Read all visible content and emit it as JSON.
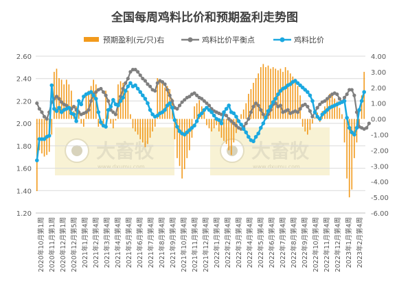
{
  "chart_data": {
    "type": "bar+line",
    "title": "全国每周鸡料比价和预期盈利走势图",
    "legend": {
      "placement": "top",
      "entries": [
        {
          "label": "预期盈利(元/只)右",
          "kind": "bar",
          "color": "#F29A1C"
        },
        {
          "label": "鸡料比价平衡点",
          "kind": "line-marker",
          "color": "#7F7F7F"
        },
        {
          "label": "鸡料比价",
          "kind": "line-marker",
          "color": "#1AA8E0"
        }
      ]
    },
    "left_axis": {
      "min": 1.2,
      "max": 2.6,
      "ticks": [
        "2.60",
        "2.40",
        "2.20",
        "2.00",
        "1.80",
        "1.60",
        "1.40",
        "1.20"
      ]
    },
    "right_axis": {
      "min": -6.0,
      "max": 4.0,
      "ticks": [
        "4.00",
        "3.00",
        "2.00",
        "1.00",
        "0.00",
        "-1.00",
        "-2.00",
        "-3.00",
        "-4.00",
        "-5.00",
        "-6.00"
      ]
    },
    "x_tick_labels": [
      "2020年10月第1周",
      "2020年11月第1周",
      "2020年12月第1周",
      "2020年12月第5周",
      "2021年1月第4周",
      "2021年2月第4周",
      "2021年3月第4周",
      "2021年4月第4周",
      "2021年5月第4周",
      "2021年6月第4周",
      "2021年7月第4周",
      "2021年8月第4周",
      "2021年9月第4周",
      "2021年10月第4周",
      "2021年11月第4周",
      "2021年12月第4周",
      "2022年1月第4周",
      "2022年2月第4周",
      "2022年3月第4周",
      "2022年4月第4周",
      "2022年5月第4周",
      "2022年6月第4周",
      "2022年7月第4周",
      "2022年8月第4周",
      "2022年9月第4周",
      "2022年10月第4周",
      "2022年11月第4周",
      "2022年12月第4周",
      "2023年1月第4周",
      "2023年2月第4周"
    ],
    "series": [
      {
        "name": "预期盈利(元/只)右",
        "type": "bar",
        "axis": "right",
        "color": "#F29A1C",
        "values": [
          -4.6,
          -2.0,
          -2.2,
          -2.4,
          -2.3,
          -2.1,
          -1.0,
          3.0,
          3.2,
          2.6,
          2.5,
          2.2,
          2.5,
          2.2,
          1.8,
          0.5,
          0.8,
          0.6,
          -0.3,
          -0.5,
          1.6,
          1.8,
          2.1,
          2.5,
          2.2,
          -0.5,
          -0.4,
          -0.3,
          1.8,
          0.4,
          -0.3,
          -0.6,
          -0.1,
          2.2,
          2.4,
          2.3,
          1.9,
          1.8,
          0.3,
          -0.6,
          -0.8,
          -1.0,
          -1.3,
          -1.5,
          -1.8,
          -1.6,
          -1.2,
          -0.8,
          -0.5,
          2.6,
          2.5,
          2.3,
          2.0,
          2.1,
          1.9,
          1.3,
          -1.3,
          -2.5,
          -3.0,
          -3.8,
          -3.2,
          -2.5,
          -2.0,
          -1.2,
          0.8,
          1.0,
          1.2,
          0.8,
          0.5,
          -0.4,
          -0.6,
          -0.8,
          -0.6,
          -0.4,
          -0.8,
          -1.2,
          -1.4,
          -1.6,
          -2.0,
          -2.3,
          -1.5,
          -0.9,
          -0.2,
          0.3,
          0.6,
          1.0,
          1.6,
          1.9,
          2.3,
          2.6,
          2.9,
          3.3,
          3.5,
          3.3,
          3.4,
          3.2,
          3.3,
          3.2,
          3.1,
          3.2,
          3.0,
          3.3,
          3.1,
          2.9,
          2.7,
          2.4,
          2.1,
          1.5,
          -0.5,
          -0.8,
          -1.0,
          -0.7,
          -0.3,
          0.1,
          0.4,
          -0.2,
          0.5,
          0.8,
          1.2,
          1.6,
          1.5,
          1.3,
          1.1,
          0.7,
          0.3,
          -1.5,
          -3.8,
          -5.0,
          -4.5,
          -2.5,
          -1.5,
          -0.5,
          1.5,
          3.0
        ]
      },
      {
        "name": "鸡料比价平衡点",
        "type": "line",
        "axis": "left",
        "color": "#7F7F7F",
        "values": [
          2.18,
          2.13,
          2.1,
          2.06,
          2.04,
          2.1,
          2.19,
          2.22,
          2.24,
          2.22,
          2.19,
          2.17,
          2.16,
          2.14,
          2.13,
          2.15,
          2.12,
          2.1,
          2.08,
          2.09,
          2.1,
          2.12,
          2.2,
          2.26,
          2.28,
          2.3,
          2.31,
          2.28,
          2.25,
          2.2,
          2.12,
          2.1,
          2.08,
          2.17,
          2.24,
          2.31,
          2.36,
          2.4,
          2.46,
          2.48,
          2.48,
          2.46,
          2.43,
          2.4,
          2.38,
          2.35,
          2.33,
          2.3,
          2.29,
          2.36,
          2.38,
          2.37,
          2.35,
          2.3,
          2.25,
          2.2,
          2.14,
          2.13,
          2.16,
          2.19,
          2.21,
          2.23,
          2.24,
          2.26,
          2.27,
          2.25,
          2.23,
          2.22,
          2.2,
          2.18,
          2.16,
          2.13,
          2.11,
          2.1,
          2.09,
          2.08,
          2.08,
          2.07,
          2.04,
          2.02,
          2.0,
          1.98,
          1.96,
          1.95,
          1.97,
          2.0,
          2.04,
          2.1,
          2.15,
          2.18,
          2.16,
          2.12,
          2.08,
          2.05,
          2.08,
          2.12,
          2.17,
          2.18,
          2.15,
          2.16,
          2.1,
          2.11,
          2.12,
          2.09,
          2.1,
          2.11,
          2.1,
          2.13,
          2.16,
          2.17,
          2.15,
          2.11,
          2.06,
          2.1,
          2.14,
          2.17,
          2.19,
          2.2,
          2.22,
          2.24,
          2.26,
          2.27,
          2.26,
          2.22,
          2.19,
          2.23,
          2.26,
          2.3,
          2.3,
          2.25,
          2.1,
          1.97,
          1.96,
          1.95,
          1.96,
          2.0
        ]
      },
      {
        "name": "鸡料比价",
        "type": "line",
        "axis": "left",
        "color": "#1AA8E0",
        "values": [
          1.67,
          1.86,
          1.86,
          1.86,
          1.88,
          1.89,
          2.34,
          2.13,
          2.11,
          2.14,
          2.1,
          2.12,
          2.13,
          2.14,
          2.09,
          2.08,
          2.02,
          2.2,
          2.17,
          2.24,
          2.26,
          2.27,
          2.28,
          2.25,
          2.22,
          2.1,
          2.01,
          1.98,
          1.97,
          2.12,
          2.15,
          2.21,
          2.17,
          2.16,
          2.2,
          2.23,
          2.29,
          2.33,
          2.36,
          2.33,
          2.34,
          2.31,
          2.28,
          2.25,
          2.22,
          2.18,
          2.12,
          2.08,
          2.06,
          2.07,
          2.09,
          2.1,
          2.12,
          2.16,
          2.18,
          2.14,
          2.03,
          1.97,
          1.93,
          1.91,
          1.9,
          1.92,
          1.94,
          1.96,
          1.98,
          2.02,
          2.07,
          2.09,
          2.12,
          2.14,
          2.12,
          2.1,
          2.07,
          2.04,
          2.03,
          2.0,
          2.1,
          2.13,
          2.16,
          2.1,
          2.09,
          2.06,
          2.02,
          1.99,
          1.95,
          1.92,
          1.88,
          1.85,
          1.84,
          1.88,
          1.91,
          1.96,
          2.0,
          2.05,
          2.11,
          2.15,
          2.19,
          2.22,
          2.26,
          2.29,
          2.31,
          2.32,
          2.34,
          2.35,
          2.37,
          2.38,
          2.36,
          2.34,
          2.32,
          2.3,
          2.28,
          2.25,
          2.2,
          2.1,
          2.06,
          2.04,
          2.08,
          2.1,
          2.12,
          2.14,
          2.15,
          2.16,
          2.17,
          2.18,
          2.19,
          2.2,
          2.05,
          1.96,
          1.92,
          1.9,
          1.96,
          2.12,
          2.2,
          2.28
        ]
      }
    ]
  },
  "watermarks": [
    {
      "text_cn": "大畜牧",
      "text_url": "www.dxumu.com"
    },
    {
      "text_cn": "大畜牧",
      "text_url": "www.dxumu.com"
    }
  ]
}
